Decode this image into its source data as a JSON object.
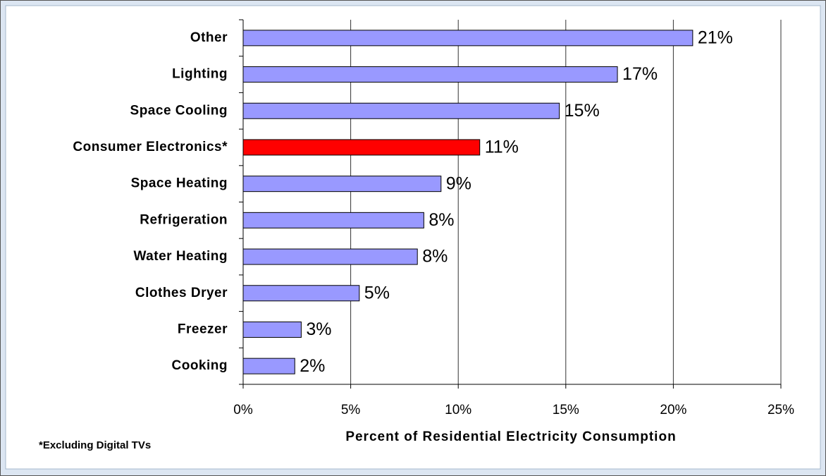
{
  "chart_data": {
    "type": "barh",
    "xlabel": "Percent of Residential Electricity Consumption",
    "footnote": "*Excluding Digital TVs",
    "categories": [
      "Other",
      "Lighting",
      "Space Cooling",
      "Consumer Electronics*",
      "Space Heating",
      "Refrigeration",
      "Water Heating",
      "Clothes Dryer",
      "Freezer",
      "Cooking"
    ],
    "values": [
      20.9,
      17.4,
      14.7,
      11.0,
      9.2,
      8.4,
      8.1,
      5.4,
      2.7,
      2.4
    ],
    "value_labels": [
      "21%",
      "17%",
      "15%",
      "11%",
      "9%",
      "8%",
      "8%",
      "5%",
      "3%",
      "2%"
    ],
    "colors": [
      "#9999ff",
      "#9999ff",
      "#9999ff",
      "#ff0000",
      "#9999ff",
      "#9999ff",
      "#9999ff",
      "#9999ff",
      "#9999ff",
      "#9999ff"
    ],
    "xlim": [
      0,
      25
    ],
    "xticks": [
      {
        "value": 0,
        "label": "0%"
      },
      {
        "value": 5,
        "label": "5%"
      },
      {
        "value": 10,
        "label": "10%"
      },
      {
        "value": 15,
        "label": "15%"
      },
      {
        "value": 20,
        "label": "20%"
      },
      {
        "value": 25,
        "label": "25%"
      }
    ],
    "grid": true
  }
}
